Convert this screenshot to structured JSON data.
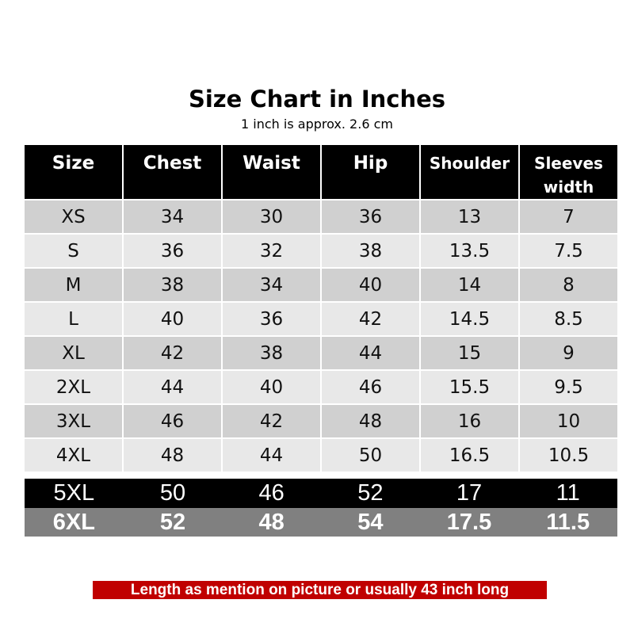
{
  "title": "Size Chart in Inches",
  "subtitle": "1 inch is approx. 2.6 cm",
  "headers": [
    "Size",
    "Chest",
    "Waist",
    "Hip",
    "Shoulder",
    "Sleeves width"
  ],
  "rows": [
    [
      "XS",
      "34",
      "30",
      "36",
      "13",
      "7"
    ],
    [
      "S",
      "36",
      "32",
      "38",
      "13.5",
      "7.5"
    ],
    [
      "M",
      "38",
      "34",
      "40",
      "14",
      "8"
    ],
    [
      "L",
      "40",
      "36",
      "42",
      "14.5",
      "8.5"
    ],
    [
      "XL",
      "42",
      "38",
      "44",
      "15",
      "9"
    ],
    [
      "2XL",
      "44",
      "40",
      "46",
      "15.5",
      "9.5"
    ],
    [
      "3XL",
      "46",
      "42",
      "48",
      "16",
      "10"
    ],
    [
      "4XL",
      "48",
      "44",
      "50",
      "16.5",
      "10.5"
    ]
  ],
  "extra_rows": [
    [
      "5XL",
      "50",
      "46",
      "52",
      "17",
      "11"
    ],
    [
      "6XL",
      "52",
      "48",
      "54",
      "17.5",
      "11.5"
    ]
  ],
  "note": "Length as mention on picture or usually 43 inch long",
  "colors": {
    "header": "#000000",
    "row_dark": "#d0d0d0",
    "row_light": "#e8e8e8",
    "row_5xl": "#000000",
    "row_6xl": "#808080",
    "note": "#c00000"
  }
}
